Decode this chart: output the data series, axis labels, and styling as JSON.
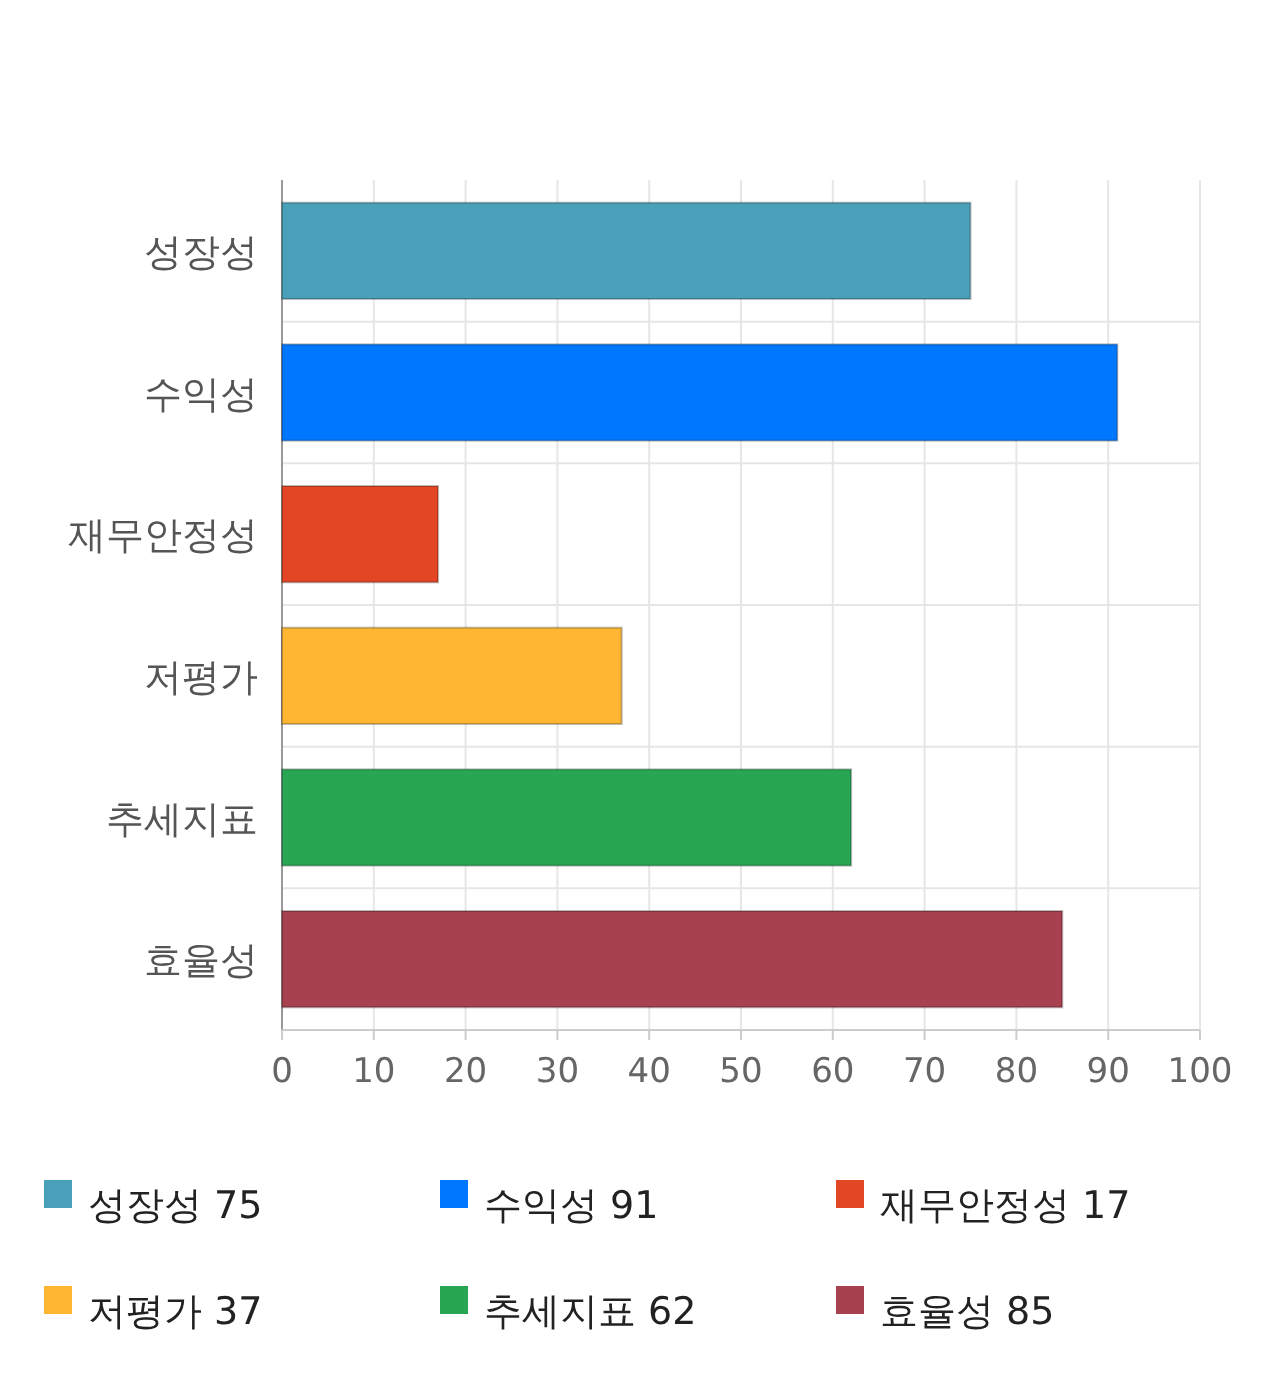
{
  "chart_data": {
    "type": "bar",
    "orientation": "horizontal",
    "stacked": true,
    "categories": [
      "성장성",
      "수익성",
      "재무안정성",
      "저평가",
      "추세지표",
      "효율성"
    ],
    "series": [
      {
        "name": "성장성 75",
        "color": "#4aa0b8",
        "values": [
          75,
          null,
          null,
          null,
          null,
          null
        ]
      },
      {
        "name": "수익성 91",
        "color": "#0077ff",
        "values": [
          null,
          91,
          null,
          null,
          null,
          null
        ]
      },
      {
        "name": "재무안정성 17",
        "color": "#e24624",
        "values": [
          null,
          null,
          17,
          null,
          null,
          null
        ]
      },
      {
        "name": "저평가 37",
        "color": "#ffb733",
        "values": [
          null,
          null,
          null,
          37,
          null,
          null
        ]
      },
      {
        "name": "추세지표 62",
        "color": "#28a653",
        "values": [
          null,
          null,
          null,
          null,
          62,
          null
        ]
      },
      {
        "name": "효율성 85",
        "color": "#a7404f",
        "values": [
          null,
          null,
          null,
          null,
          null,
          85
        ]
      }
    ],
    "xlim": [
      0,
      100
    ],
    "xticks": [
      0,
      10,
      20,
      30,
      40,
      50,
      60,
      70,
      80,
      90,
      100
    ],
    "grid": true,
    "legend": "bottom"
  }
}
